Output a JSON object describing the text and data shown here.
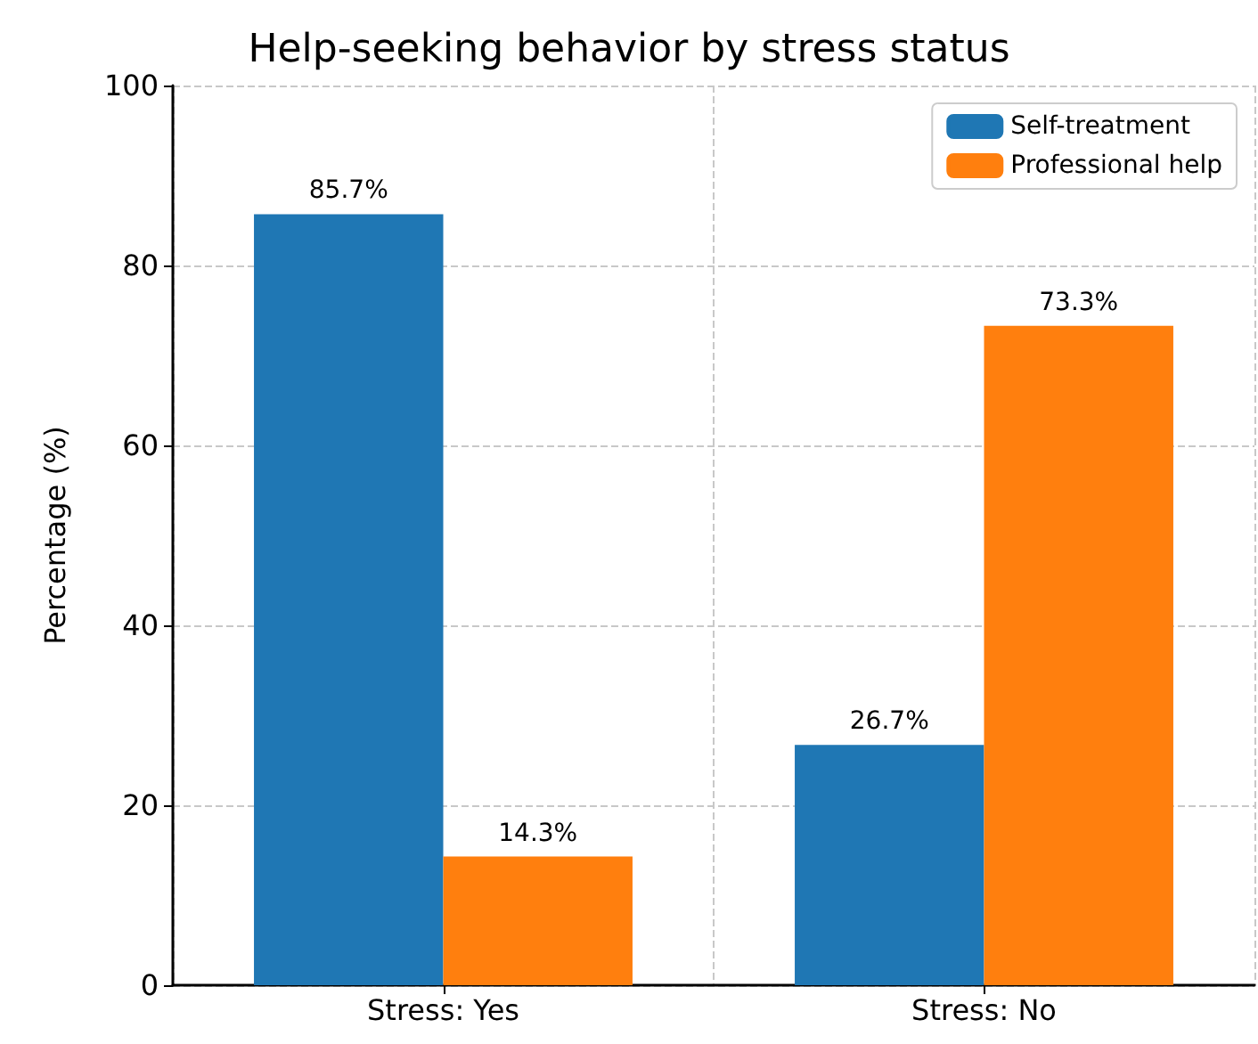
{
  "chart_data": {
    "type": "bar",
    "title": "Help-seeking behavior by stress status",
    "ylabel": "Percentage (%)",
    "categories": [
      "Stress: Yes",
      "Stress: No"
    ],
    "series": [
      {
        "name": "Self-treatment",
        "color": "#1f77b4",
        "values": [
          85.7,
          26.7
        ],
        "value_labels": [
          "85.7%",
          "26.7%"
        ]
      },
      {
        "name": "Professional help",
        "color": "#ff7f0e",
        "values": [
          14.3,
          73.3
        ],
        "value_labels": [
          "14.3%",
          "73.3%"
        ]
      }
    ],
    "ylim": [
      0,
      100
    ],
    "yticks": [
      0,
      20,
      40,
      60,
      80,
      100
    ],
    "grid": true,
    "legend": "top right"
  }
}
